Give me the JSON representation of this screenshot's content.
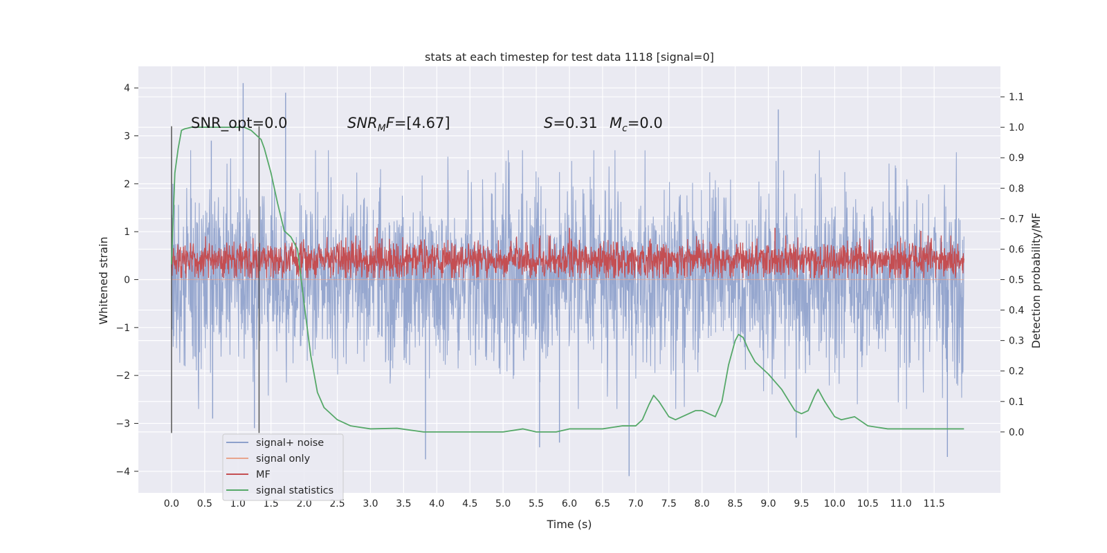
{
  "chart_data": {
    "type": "line",
    "title": "stats at each timestep for test data 1118 [signal=0]",
    "xlabel": "Time (s)",
    "ylabel_left": "Whitened strain",
    "ylabel_right": "Detection probability/MF",
    "xlim": [
      -0.5,
      12.5
    ],
    "ylim_left": [
      -4.45,
      4.45
    ],
    "ylim_right": [
      -0.2,
      1.2
    ],
    "x_ticks": [
      "0.0",
      "0.5",
      "1.0",
      "1.5",
      "2.0",
      "2.5",
      "3.0",
      "3.5",
      "4.0",
      "4.5",
      "5.0",
      "5.5",
      "6.0",
      "6.5",
      "7.0",
      "7.5",
      "8.0",
      "8.5",
      "9.0",
      "9.5",
      "10.0",
      "10.5",
      "11.0",
      "11.5"
    ],
    "y_ticks_left": [
      "4",
      "3",
      "2",
      "1",
      "0",
      "−1",
      "−2",
      "−3",
      "−4"
    ],
    "y_ticks_right": [
      "1.1",
      "1.0",
      "0.9",
      "0.8",
      "0.7",
      "0.6",
      "0.5",
      "0.4",
      "0.3",
      "0.2",
      "0.1",
      "0.0"
    ],
    "grid": true,
    "legend_position": "lower-left",
    "annotations": {
      "snr_opt": "SNR_opt=0.0",
      "snr_mf": "=[4.67]",
      "s_value": "=0.31",
      "mc_value": "=0.0"
    },
    "vertical_markers": [
      0.0,
      1.32
    ],
    "series": [
      {
        "name": "signal+ noise",
        "axis": "left",
        "color": "#8da0cb",
        "description_range": [
          -1.8,
          1.8
        ],
        "peaks": [
          {
            "x": 0.02,
            "y": 2.0
          },
          {
            "x": 0.6,
            "y": 2.9
          },
          {
            "x": 0.62,
            "y": -2.9
          },
          {
            "x": 1.08,
            "y": 4.1
          },
          {
            "x": 1.25,
            "y": -3.1
          },
          {
            "x": 1.72,
            "y": 3.9
          },
          {
            "x": 3.83,
            "y": -3.75
          },
          {
            "x": 5.55,
            "y": -3.5
          },
          {
            "x": 5.85,
            "y": -3.4
          },
          {
            "x": 6.9,
            "y": -4.1
          },
          {
            "x": 9.15,
            "y": 3.55
          },
          {
            "x": 9.42,
            "y": -3.3
          },
          {
            "x": 11.7,
            "y": -3.7
          }
        ]
      },
      {
        "name": "signal only",
        "axis": "left",
        "color": "#e8a48c",
        "values": "zero"
      },
      {
        "name": "MF",
        "axis": "right",
        "color": "#c44e52",
        "description_range": [
          0.5,
          0.65
        ],
        "peaks": [
          {
            "x": 3.1,
            "y": 0.67
          },
          {
            "x": 6.0,
            "y": 0.67
          },
          {
            "x": 9.1,
            "y": 0.67
          },
          {
            "x": 11.3,
            "y": 0.66
          }
        ]
      },
      {
        "name": "signal statistics",
        "axis": "right",
        "color": "#55a868",
        "x": [
          0.0,
          0.05,
          0.1,
          0.15,
          0.2,
          0.3,
          0.5,
          0.7,
          0.9,
          1.0,
          1.1,
          1.2,
          1.25,
          1.3,
          1.35,
          1.4,
          1.5,
          1.6,
          1.7,
          1.8,
          1.9,
          2.0,
          2.1,
          2.2,
          2.3,
          2.5,
          2.7,
          3.0,
          3.4,
          3.8,
          4.5,
          5.0,
          5.3,
          5.5,
          5.8,
          6.0,
          6.5,
          6.8,
          7.0,
          7.1,
          7.2,
          7.27,
          7.35,
          7.5,
          7.6,
          7.8,
          7.9,
          8.0,
          8.1,
          8.2,
          8.3,
          8.4,
          8.5,
          8.55,
          8.62,
          8.7,
          8.8,
          9.0,
          9.2,
          9.4,
          9.5,
          9.6,
          9.7,
          9.75,
          9.85,
          10.0,
          10.1,
          10.3,
          10.5,
          10.8,
          11.5,
          11.95
        ],
        "y": [
          0.55,
          0.85,
          0.93,
          0.99,
          0.995,
          1.0,
          1.0,
          1.0,
          1.0,
          1.0,
          1.0,
          0.99,
          0.98,
          0.97,
          0.96,
          0.93,
          0.85,
          0.75,
          0.66,
          0.64,
          0.6,
          0.42,
          0.25,
          0.13,
          0.08,
          0.04,
          0.02,
          0.01,
          0.012,
          0.0,
          0.0,
          0.0,
          0.01,
          0.0,
          0.0,
          0.01,
          0.01,
          0.02,
          0.02,
          0.04,
          0.09,
          0.12,
          0.1,
          0.05,
          0.04,
          0.06,
          0.07,
          0.07,
          0.06,
          0.05,
          0.1,
          0.22,
          0.3,
          0.32,
          0.31,
          0.27,
          0.23,
          0.19,
          0.14,
          0.07,
          0.06,
          0.07,
          0.12,
          0.14,
          0.1,
          0.05,
          0.04,
          0.05,
          0.02,
          0.01,
          0.01,
          0.01
        ]
      }
    ]
  }
}
